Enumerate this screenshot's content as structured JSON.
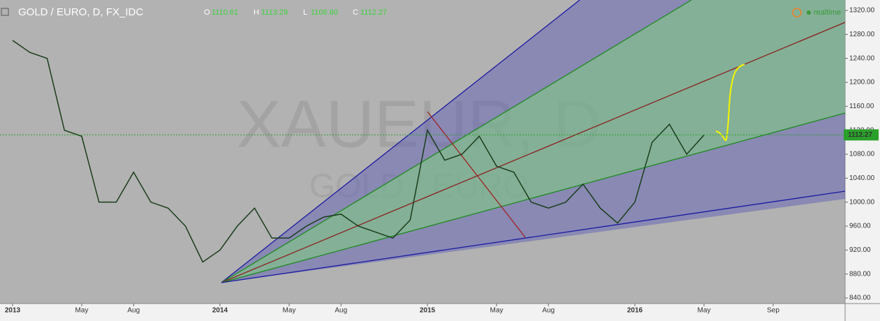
{
  "chart_data": {
    "type": "line",
    "title": "GOLD / EURO, D, FX_IDC",
    "ohlc": [
      {
        "label": "O",
        "value": "1110.61"
      },
      {
        "label": "H",
        "value": "1113.29"
      },
      {
        "label": "L",
        "value": "1106.60"
      },
      {
        "label": "C",
        "value": "1112.27"
      }
    ],
    "status": "realtime",
    "watermark": "XAUEUR, D",
    "watermark_sub": "GOLD / EURO",
    "last_price": 1112.27,
    "categories": [
      "2013",
      null,
      null,
      null,
      "May",
      null,
      null,
      "Aug",
      null,
      null,
      null,
      null,
      "2014",
      null,
      null,
      null,
      "May",
      null,
      null,
      "Aug",
      null,
      null,
      null,
      null,
      "2015",
      null,
      null,
      null,
      "May",
      null,
      null,
      "Aug",
      null,
      null,
      null,
      null,
      "2016",
      null,
      null,
      null,
      "May",
      null,
      null,
      null,
      "Sep",
      null,
      null,
      null
    ],
    "series": [
      {
        "name": "GOLD / EURO",
        "color": "#1a3d1a",
        "values": [
          1270,
          1250,
          1240,
          1120,
          1110,
          1000,
          1000,
          1050,
          1000,
          990,
          960,
          900,
          920,
          960,
          990,
          940,
          940,
          960,
          975,
          980,
          960,
          950,
          940,
          970,
          1120,
          1070,
          1080,
          1110,
          1060,
          1050,
          1000,
          990,
          1000,
          1030,
          990,
          965,
          1000,
          1100,
          1130,
          1080,
          1112,
          null,
          null,
          null,
          null,
          null,
          null,
          null
        ]
      }
    ],
    "ylim": [
      840,
      1320
    ],
    "yticks": [
      {
        "value": 840,
        "label": "840.00"
      },
      {
        "value": 880,
        "label": "880.00"
      },
      {
        "value": 920,
        "label": "920.00"
      },
      {
        "value": 960,
        "label": "960.00"
      },
      {
        "value": 1000,
        "label": "1000.00"
      },
      {
        "value": 1040,
        "label": "1040.00"
      },
      {
        "value": 1080,
        "label": "1080.00"
      },
      {
        "value": 1120,
        "label": "1120.00"
      },
      {
        "value": 1160,
        "label": "1160.00"
      },
      {
        "value": 1200,
        "label": "1200.00"
      },
      {
        "value": 1240,
        "label": "1240.00"
      },
      {
        "value": 1280,
        "label": "1280.00"
      },
      {
        "value": 1320,
        "label": "1320.00"
      }
    ],
    "last_price_label": "1112.27"
  }
}
